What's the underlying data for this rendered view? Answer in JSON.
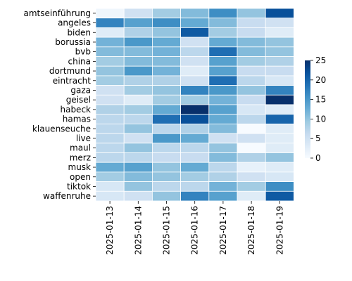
{
  "chart_data": {
    "type": "heatmap",
    "title": "",
    "xlabel": "",
    "ylabel": "",
    "columns": [
      "2025-01-13",
      "2025-01-14",
      "2025-01-15",
      "2025-01-16",
      "2025-01-17",
      "2025-01-18",
      "2025-01-19"
    ],
    "rows": [
      "amtseinführung",
      "angeles",
      "biden",
      "borussia",
      "bvb",
      "china",
      "dortmund",
      "eintracht",
      "gaza",
      "geisel",
      "habeck",
      "hamas",
      "klauenseuche",
      "live",
      "maul",
      "merz",
      "musk",
      "open",
      "tiktok",
      "waffenruhe"
    ],
    "values": [
      [
        1,
        5,
        9,
        11,
        16,
        10,
        22
      ],
      [
        17,
        14,
        16,
        13,
        11,
        6,
        5
      ],
      [
        3,
        8,
        10,
        21,
        9,
        6,
        3
      ],
      [
        12,
        15,
        13,
        5,
        13,
        11,
        10
      ],
      [
        11,
        11,
        12,
        7,
        19,
        11,
        10
      ],
      [
        9,
        11,
        11,
        5,
        14,
        9,
        8
      ],
      [
        10,
        15,
        12,
        3,
        14,
        6,
        6
      ],
      [
        9,
        8,
        8,
        5,
        19,
        7,
        4
      ],
      [
        5,
        9,
        10,
        17,
        15,
        10,
        17
      ],
      [
        5,
        3,
        9,
        9,
        12,
        6,
        25
      ],
      [
        8,
        9,
        13,
        25,
        14,
        4,
        3
      ],
      [
        7,
        7,
        19,
        22,
        13,
        7,
        20
      ],
      [
        7,
        10,
        7,
        8,
        11,
        0,
        3
      ],
      [
        7,
        5,
        15,
        13,
        5,
        5,
        3
      ],
      [
        7,
        10,
        7,
        7,
        10,
        0,
        3
      ],
      [
        7,
        7,
        6,
        6,
        11,
        8,
        10
      ],
      [
        13,
        14,
        10,
        13,
        7,
        2,
        3
      ],
      [
        9,
        11,
        10,
        9,
        8,
        5,
        4
      ],
      [
        4,
        10,
        7,
        7,
        12,
        9,
        16
      ],
      [
        4,
        5,
        10,
        17,
        14,
        3,
        21
      ]
    ],
    "vmin": 0,
    "vmax": 25,
    "colormap": "Blues",
    "colorbar_ticks": [
      0,
      5,
      10,
      15,
      20,
      25
    ],
    "grid": "white cell borders",
    "colorbar_position": "right"
  }
}
